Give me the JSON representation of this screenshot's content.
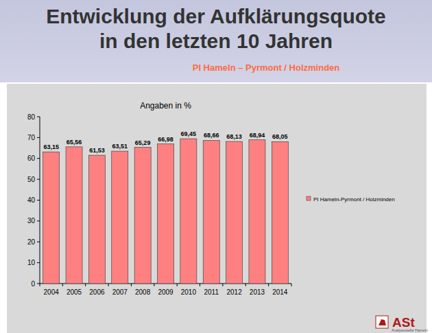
{
  "header": {
    "title_lines": [
      "Entwicklung der Aufklärungsquote",
      "in den letzten 10 Jahren"
    ],
    "subtitle": "PI Hameln – Pyrmont / Holzminden"
  },
  "chart_data": {
    "type": "bar",
    "title": "Angaben in %",
    "categories": [
      "2004",
      "2005",
      "2006",
      "2007",
      "2008",
      "2009",
      "2010",
      "2011",
      "2012",
      "2013",
      "2014"
    ],
    "series": [
      {
        "name": "PI Hameln-Pyrmont / Holzminden",
        "color": "#ff8080",
        "values": [
          63.15,
          65.56,
          61.53,
          63.51,
          65.29,
          66.98,
          69.45,
          68.66,
          68.13,
          68.94,
          68.05
        ],
        "value_labels": [
          "63,15",
          "65,56",
          "61,53",
          "63,51",
          "65,29",
          "66,98",
          "69,45",
          "68,66",
          "68,13",
          "68,94",
          "68,05"
        ]
      }
    ],
    "ylim": [
      0,
      80
    ],
    "yticks": [
      0,
      10,
      20,
      30,
      40,
      50,
      60,
      70,
      80
    ],
    "grid": false,
    "legend": "right",
    "data_labels": true
  },
  "footer": {
    "logo": "ASt",
    "caption": "Analysestelle Hameln"
  }
}
